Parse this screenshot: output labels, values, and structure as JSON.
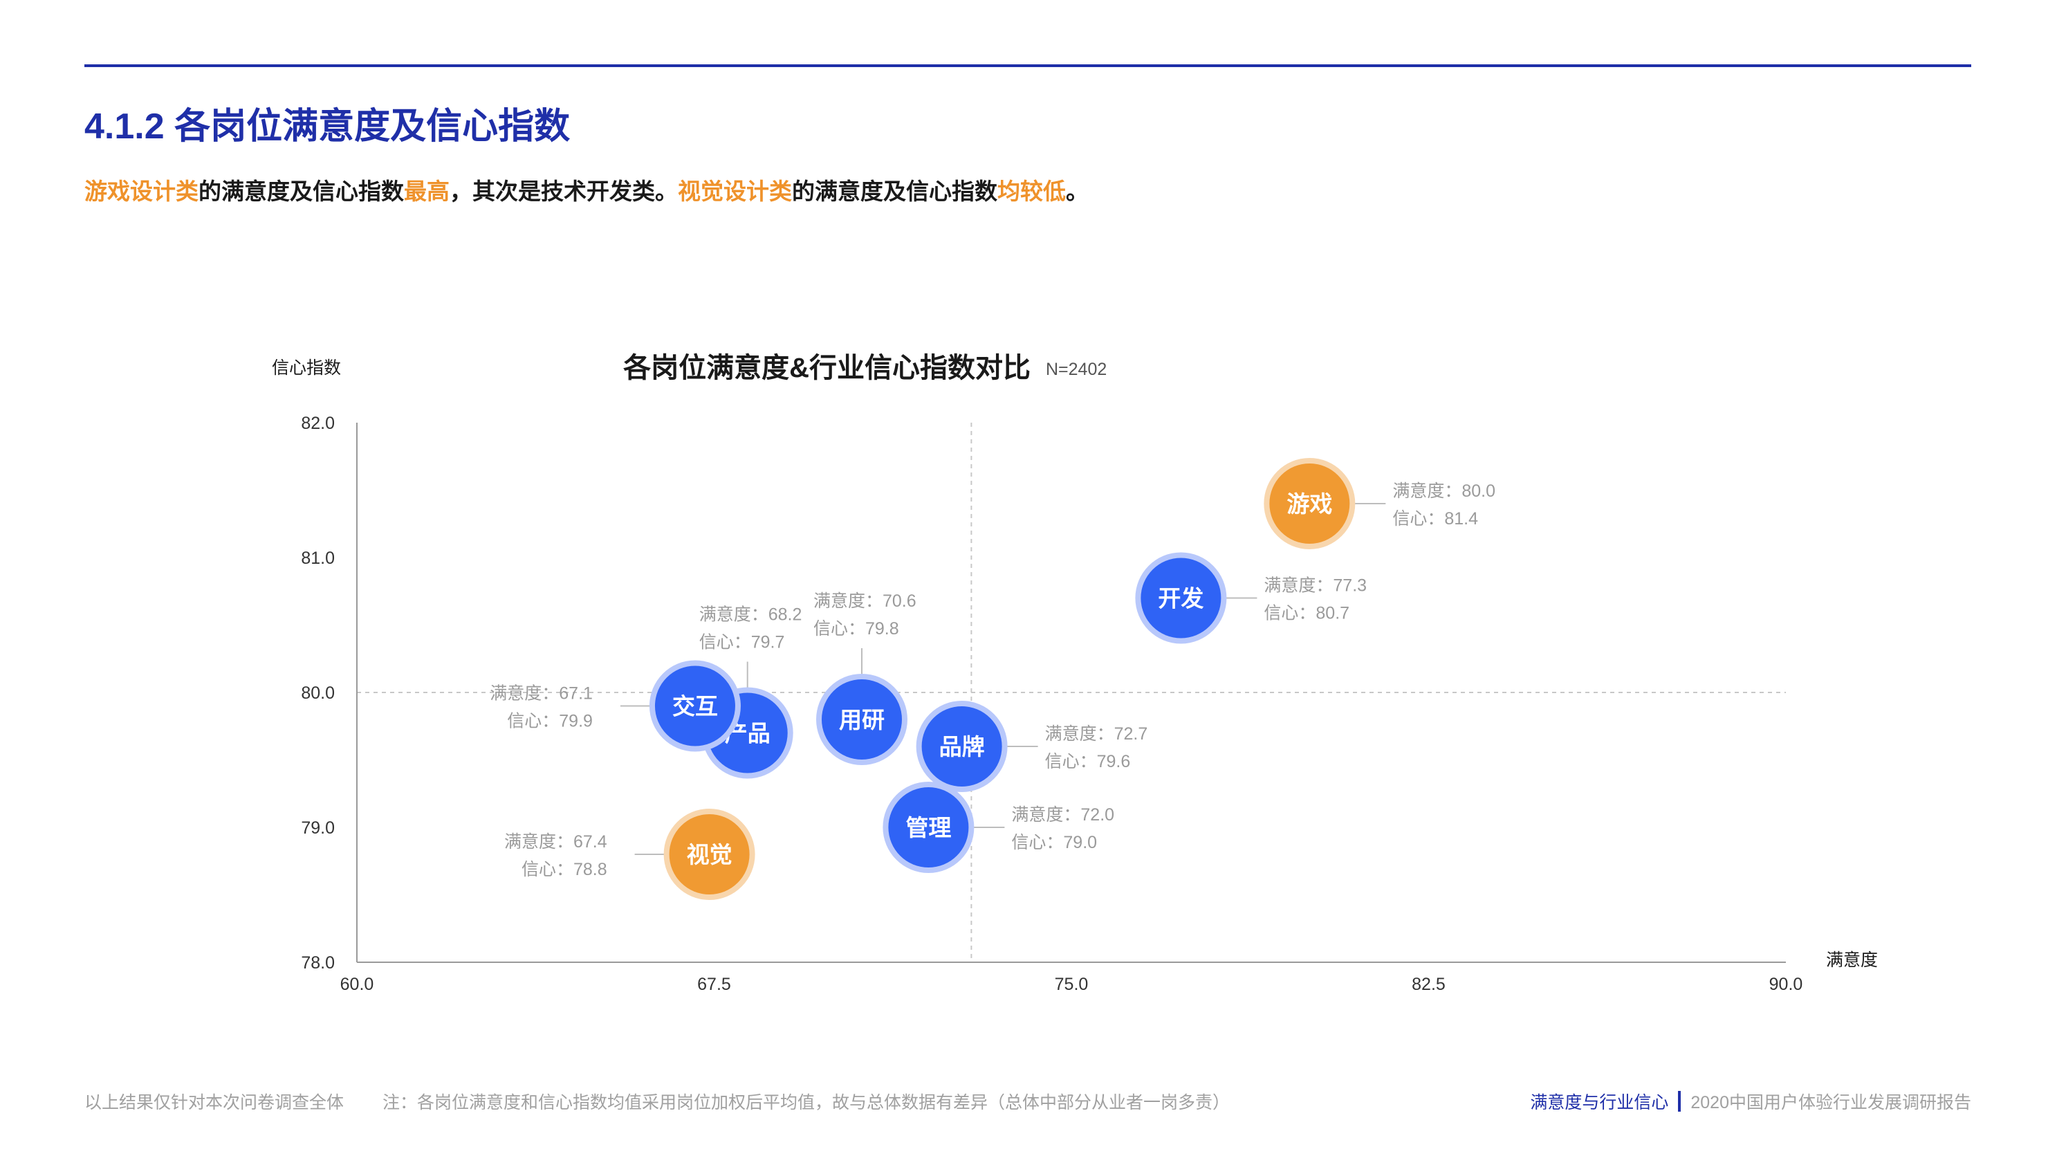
{
  "header": {
    "section_title": "4.1.2 各岗位满意度及信心指数"
  },
  "summary": [
    {
      "text": "游戏设计类",
      "hl": true
    },
    {
      "text": "的满意度及信心指数",
      "hl": false
    },
    {
      "text": "最高",
      "hl": true
    },
    {
      "text": "，其次是技术开发类。",
      "hl": false
    },
    {
      "text": "视觉设计类",
      "hl": true
    },
    {
      "text": "的满意度及信心指数",
      "hl": false
    },
    {
      "text": "均较低",
      "hl": true
    },
    {
      "text": "。",
      "hl": false
    }
  ],
  "colors": {
    "brand_blue": "#1f2fa8",
    "bubble_blue": "#2f63f5",
    "bubble_orange": "#f09a32",
    "highlight_orange": "#ef922b"
  },
  "chart_data": {
    "type": "scatter",
    "title": "各岗位满意度&行业信心指数对比",
    "sample_note": "N=2402",
    "xlabel": "满意度",
    "ylabel": "信心指数",
    "xlim": [
      60,
      90
    ],
    "ylim": [
      78,
      82
    ],
    "x_ticks": [
      "60.0",
      "67.5",
      "75.0",
      "82.5",
      "90.0"
    ],
    "y_ticks": [
      "78.0",
      "79.0",
      "80.0",
      "81.0",
      "82.0"
    ],
    "reference_lines": {
      "x": 72.9,
      "y": 80.0
    },
    "label_prefix_x": "满意度：",
    "label_prefix_y": "信心：",
    "points": [
      {
        "name": "游戏",
        "x": 80.0,
        "y": 81.4,
        "color": "orange",
        "label_x": "80.0",
        "label_y": "81.4",
        "label_side": "right"
      },
      {
        "name": "开发",
        "x": 77.3,
        "y": 80.7,
        "color": "blue",
        "label_x": "77.3",
        "label_y": "80.7",
        "label_side": "right"
      },
      {
        "name": "用研",
        "x": 70.6,
        "y": 79.8,
        "color": "blue",
        "label_x": "70.6",
        "label_y": "79.8",
        "label_side": "top"
      },
      {
        "name": "产品",
        "x": 68.2,
        "y": 79.7,
        "color": "blue",
        "label_x": "68.2",
        "label_y": "79.7",
        "label_side": "top"
      },
      {
        "name": "交互",
        "x": 67.1,
        "y": 79.9,
        "color": "blue",
        "label_x": "67.1",
        "label_y": "79.9",
        "label_side": "left"
      },
      {
        "name": "品牌",
        "x": 72.7,
        "y": 79.6,
        "color": "blue",
        "label_x": "72.7",
        "label_y": "79.6",
        "label_side": "right"
      },
      {
        "name": "管理",
        "x": 72.0,
        "y": 79.0,
        "color": "blue",
        "label_x": "72.0",
        "label_y": "79.0",
        "label_side": "right"
      },
      {
        "name": "视觉",
        "x": 67.4,
        "y": 78.8,
        "color": "orange",
        "label_x": "67.4",
        "label_y": "78.8",
        "label_side": "left"
      }
    ]
  },
  "footer": {
    "left": "以上结果仅针对本次问卷调查全体",
    "note": "注：各岗位满意度和信心指数均值采用岗位加权后平均值，故与总体数据有差异（总体中部分从业者一岗多责）",
    "section": "满意度与行业信心",
    "report": "2020中国用户体验行业发展调研报告"
  }
}
